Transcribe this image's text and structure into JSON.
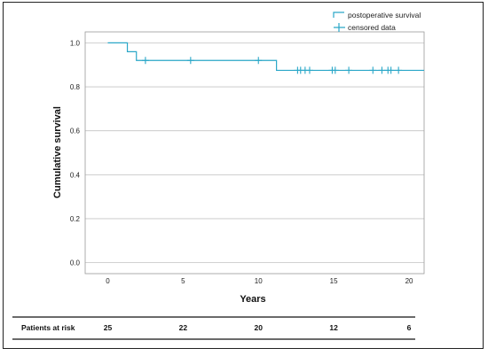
{
  "chart_data": {
    "type": "line",
    "step": true,
    "xlabel": "Years",
    "ylabel": "Cumulative survival",
    "xlim": [
      -1.5,
      21
    ],
    "ylim": [
      -0.05,
      1.05
    ],
    "xticks": [
      0,
      5,
      10,
      15,
      20
    ],
    "yticks": [
      0.0,
      0.2,
      0.4,
      0.6,
      0.8,
      1.0
    ],
    "ytick_labels": [
      "0.0",
      "0.2",
      "0.4",
      "0.6",
      "0.8",
      "1.0"
    ],
    "grid": {
      "horizontal": true,
      "vertical": false
    },
    "color": "#2aa7c8",
    "legend_position": "top-right",
    "series": [
      {
        "name": "postoperative survival",
        "x": [
          0,
          1.3,
          1.3,
          1.9,
          1.9,
          11.2,
          11.2,
          21
        ],
        "y": [
          1.0,
          1.0,
          0.96,
          0.96,
          0.92,
          0.92,
          0.875,
          0.875
        ]
      },
      {
        "name": "censored data",
        "marker": "+",
        "x": [
          2.5,
          5.5,
          10.0,
          12.6,
          12.8,
          13.1,
          13.4,
          14.9,
          15.1,
          16.0,
          17.6,
          18.2,
          18.6,
          18.8,
          19.3
        ],
        "y": [
          0.92,
          0.92,
          0.92,
          0.875,
          0.875,
          0.875,
          0.875,
          0.875,
          0.875,
          0.875,
          0.875,
          0.875,
          0.875,
          0.875,
          0.875
        ]
      }
    ]
  },
  "risk_table": {
    "label": "Patients at risk",
    "values": [
      "25",
      "22",
      "20",
      "12",
      "6"
    ]
  }
}
